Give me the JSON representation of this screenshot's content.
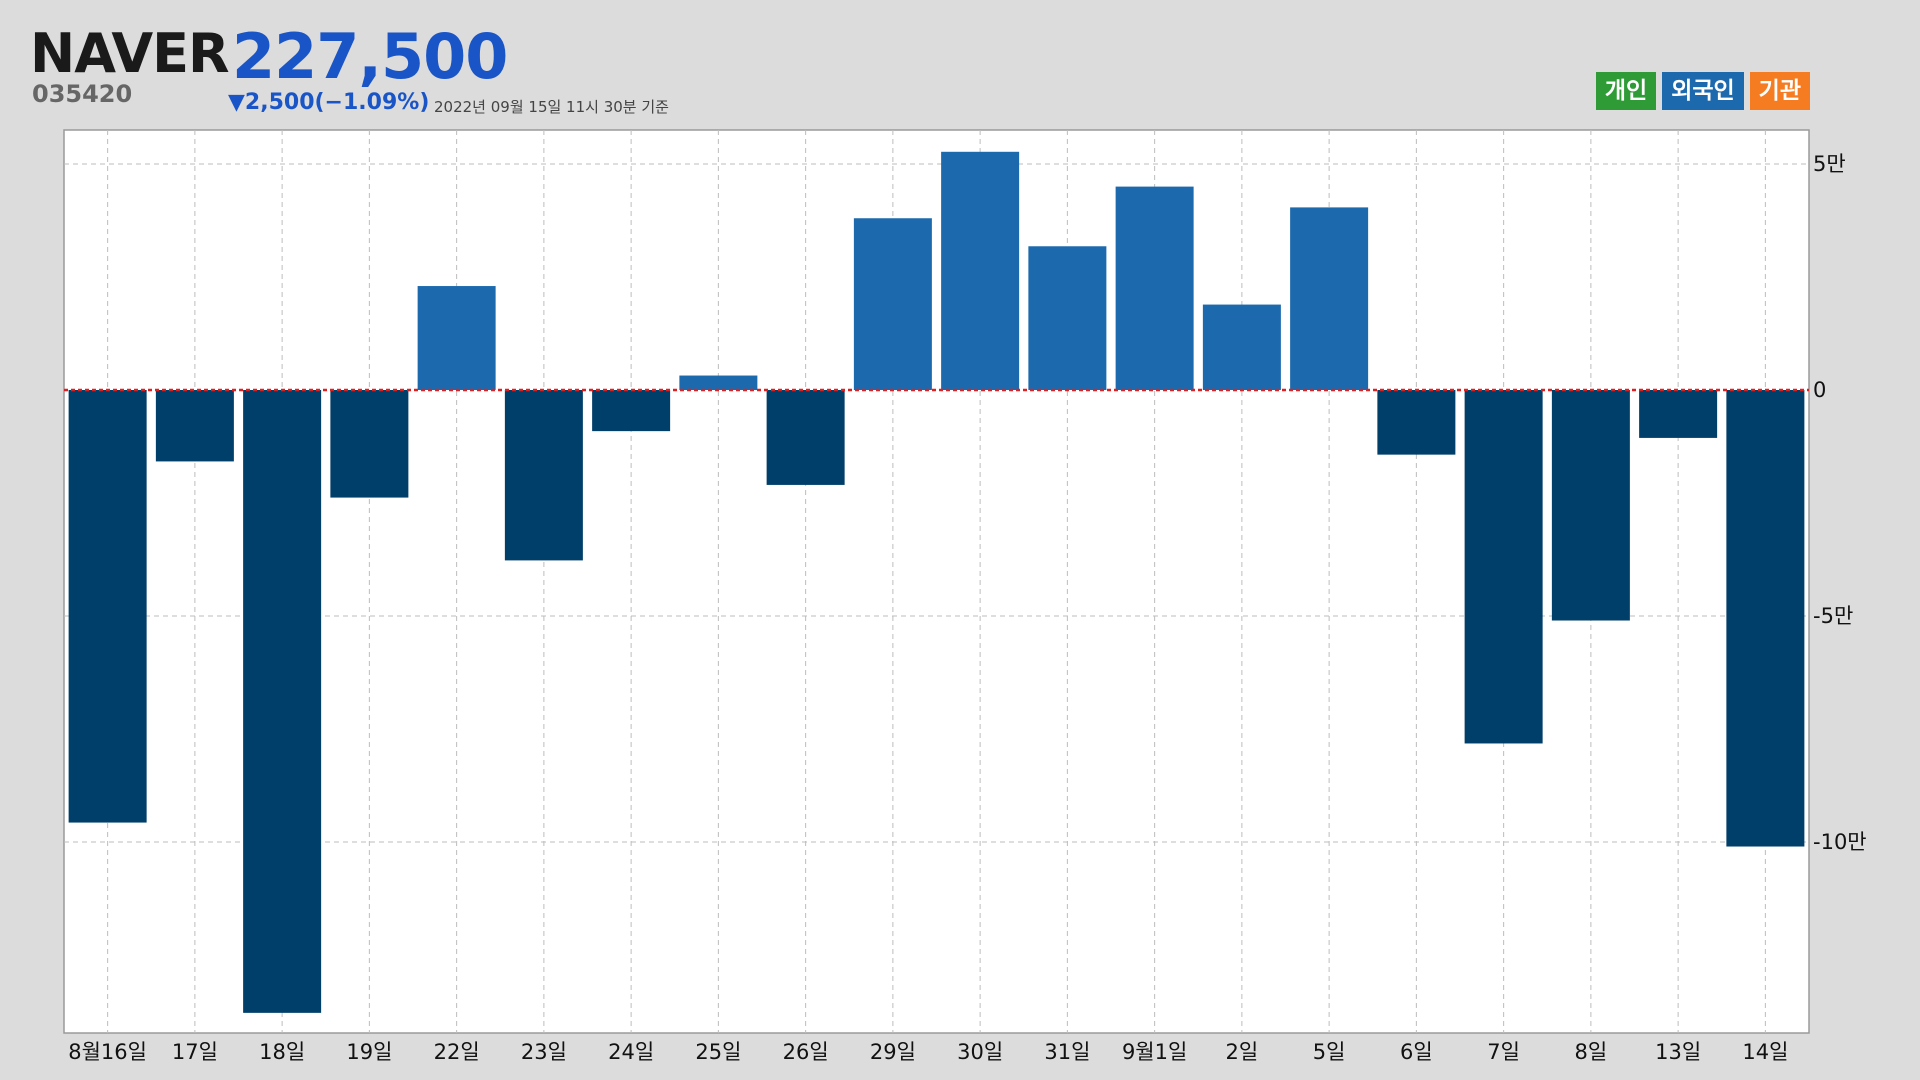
{
  "stock": {
    "name": "NAVER",
    "code": "035420",
    "price": "227,500",
    "change": "▼2,500(−1.09%)",
    "as_of": "2022년 09월 15일 11시 30분 기준"
  },
  "legend": [
    {
      "label": "개인",
      "color": "#2e9b36"
    },
    {
      "label": "외국인",
      "color": "#1c6aad"
    },
    {
      "label": "기관",
      "color": "#f57c20"
    }
  ],
  "colors": {
    "positive_bar": "#1c6aad",
    "negative_bar": "#003f6a",
    "zero_line": "#e02020",
    "grid": "#bdbdbd",
    "plot_bg": "#ffffff"
  },
  "chart_data": {
    "type": "bar",
    "series_name": "외국인",
    "categories": [
      "8월16일",
      "17일",
      "18일",
      "19일",
      "22일",
      "23일",
      "24일",
      "25일",
      "26일",
      "29일",
      "30일",
      "31일",
      "9월1일",
      "2일",
      "5일",
      "6일",
      "7일",
      "8일",
      "13일",
      "14일"
    ],
    "values": [
      -95700,
      -15800,
      -137800,
      -23800,
      23000,
      -37700,
      -9100,
      3200,
      -21000,
      38000,
      52700,
      31800,
      45000,
      18900,
      40400,
      -14300,
      -78200,
      -51000,
      -10600,
      -101000
    ],
    "ylim": [
      -140000,
      57000
    ],
    "yticks": [
      50000,
      0,
      -50000,
      -100000
    ],
    "ytick_labels": [
      "5만",
      "0",
      "-5만",
      "-10만"
    ],
    "grid": true,
    "xlabel": "",
    "ylabel": ""
  }
}
